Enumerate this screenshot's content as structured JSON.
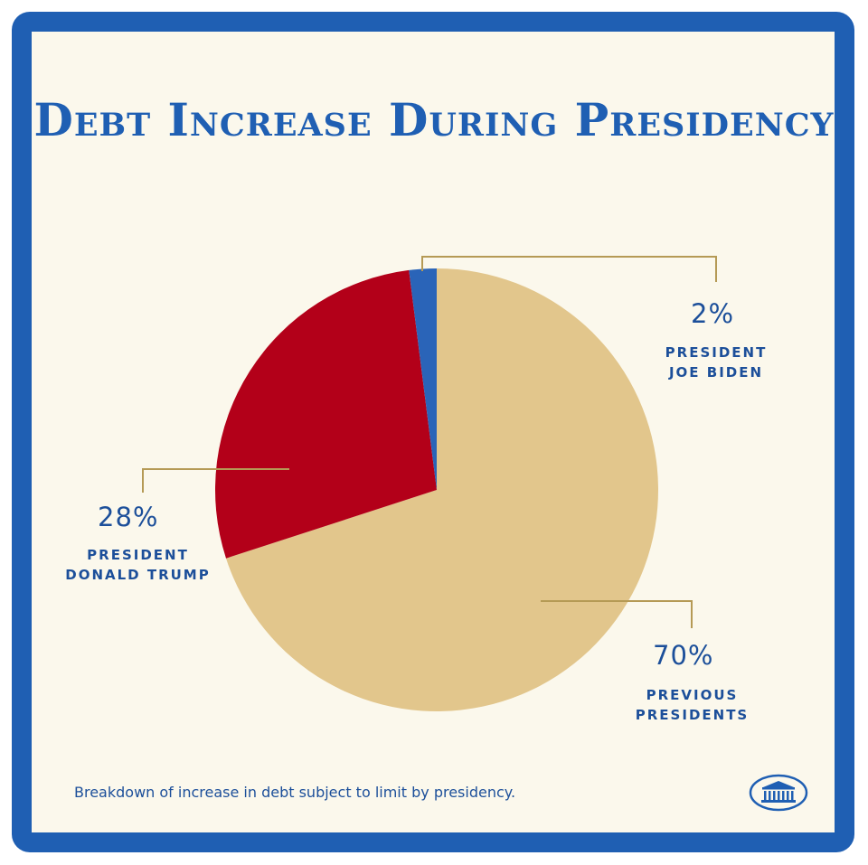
{
  "chart_data": {
    "type": "pie",
    "title": "Debt Increase During Presidency",
    "caption": "Breakdown of increase in debt subject to limit by presidency.",
    "slices": [
      {
        "key": "previous",
        "value": 70,
        "label": "70%",
        "name": "PREVIOUS\nPRESIDENTS",
        "color": "#e2c68c"
      },
      {
        "key": "trump",
        "value": 28,
        "label": "28%",
        "name": "PRESIDENT\nDONALD TRUMP",
        "color": "#b30019"
      },
      {
        "key": "biden",
        "value": 2,
        "label": "2%",
        "name": "PRESIDENT\nJOE BIDEN",
        "color": "#2a64b8"
      }
    ]
  },
  "colors": {
    "frame": "#1f5fb3",
    "background": "#fbf8ec",
    "text": "#1c4f9a",
    "leader": "#b59a55"
  },
  "logo": {
    "icon": "white-house-seal-icon"
  }
}
